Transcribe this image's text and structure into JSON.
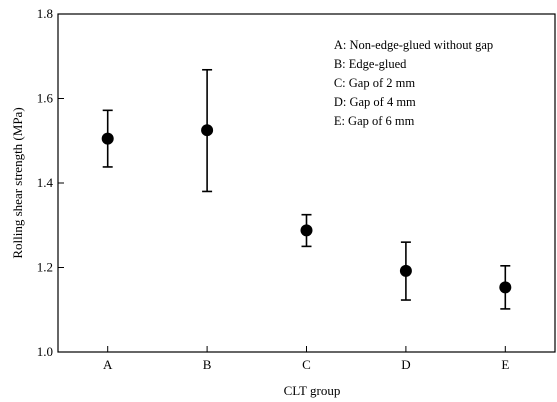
{
  "chart_data": {
    "type": "scatter",
    "title": "",
    "xlabel": "CLT group",
    "ylabel": "Rolling shear strength (MPa)",
    "categories": [
      "A",
      "B",
      "C",
      "D",
      "E"
    ],
    "values": [
      1.505,
      1.525,
      1.288,
      1.192,
      1.153
    ],
    "error_low": [
      1.438,
      1.38,
      1.25,
      1.123,
      1.102
    ],
    "error_high": [
      1.572,
      1.668,
      1.325,
      1.26,
      1.204
    ],
    "ylim": [
      1.0,
      1.8
    ],
    "yticks": [
      "1.0",
      "1.2",
      "1.4",
      "1.6",
      "1.8"
    ],
    "grid": false,
    "legend_position": "top-right",
    "legend": [
      "A: Non-edge-glued without gap",
      "B: Edge-glued",
      "C: Gap of 2 mm",
      "D: Gap of 4 mm",
      "E: Gap of 6 mm"
    ],
    "marker_color": "#000000"
  }
}
